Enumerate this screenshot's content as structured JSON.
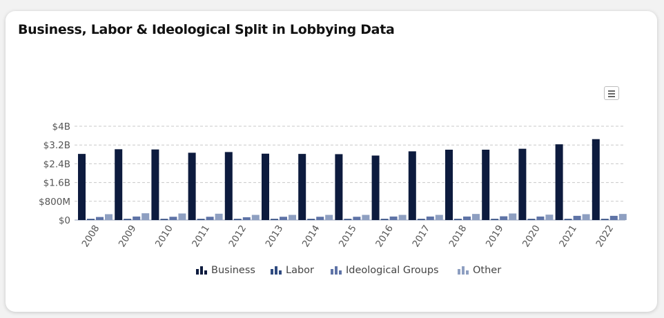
{
  "chart_data": {
    "type": "bar",
    "title": "Business, Labor & Ideological Split in Lobbying Data",
    "categories": [
      "2008",
      "2009",
      "2010",
      "2011",
      "2012",
      "2013",
      "2014",
      "2015",
      "2016",
      "2017",
      "2018",
      "2019",
      "2020",
      "2021",
      "2022"
    ],
    "series": [
      {
        "name": "Business",
        "color": "#0d1b3e",
        "values": [
          2.82,
          3.02,
          3.01,
          2.87,
          2.9,
          2.83,
          2.82,
          2.81,
          2.75,
          2.93,
          3.0,
          3.0,
          3.04,
          3.23,
          3.45
        ]
      },
      {
        "name": "Labor",
        "color": "#2f4a7f",
        "values": [
          0.05,
          0.05,
          0.05,
          0.05,
          0.05,
          0.05,
          0.05,
          0.05,
          0.05,
          0.05,
          0.05,
          0.05,
          0.05,
          0.05,
          0.05
        ]
      },
      {
        "name": "Ideological Groups",
        "color": "#5e73a6",
        "values": [
          0.13,
          0.15,
          0.14,
          0.14,
          0.12,
          0.14,
          0.14,
          0.14,
          0.15,
          0.15,
          0.15,
          0.16,
          0.15,
          0.18,
          0.18
        ]
      },
      {
        "name": "Other",
        "color": "#8e9fc1",
        "values": [
          0.25,
          0.29,
          0.28,
          0.27,
          0.22,
          0.22,
          0.22,
          0.22,
          0.22,
          0.22,
          0.26,
          0.28,
          0.23,
          0.25,
          0.26
        ]
      }
    ],
    "yunit": "billions USD",
    "ylim": [
      0,
      4
    ],
    "yticks": [
      0,
      0.8,
      1.6,
      2.4,
      3.2,
      4
    ],
    "ytick_labels": [
      "$0",
      "$800M",
      "$1.6B",
      "$2.4B",
      "$3.2B",
      "$4B"
    ],
    "grid": true,
    "legend": "bottom-center",
    "xlabel": "",
    "ylabel": ""
  }
}
